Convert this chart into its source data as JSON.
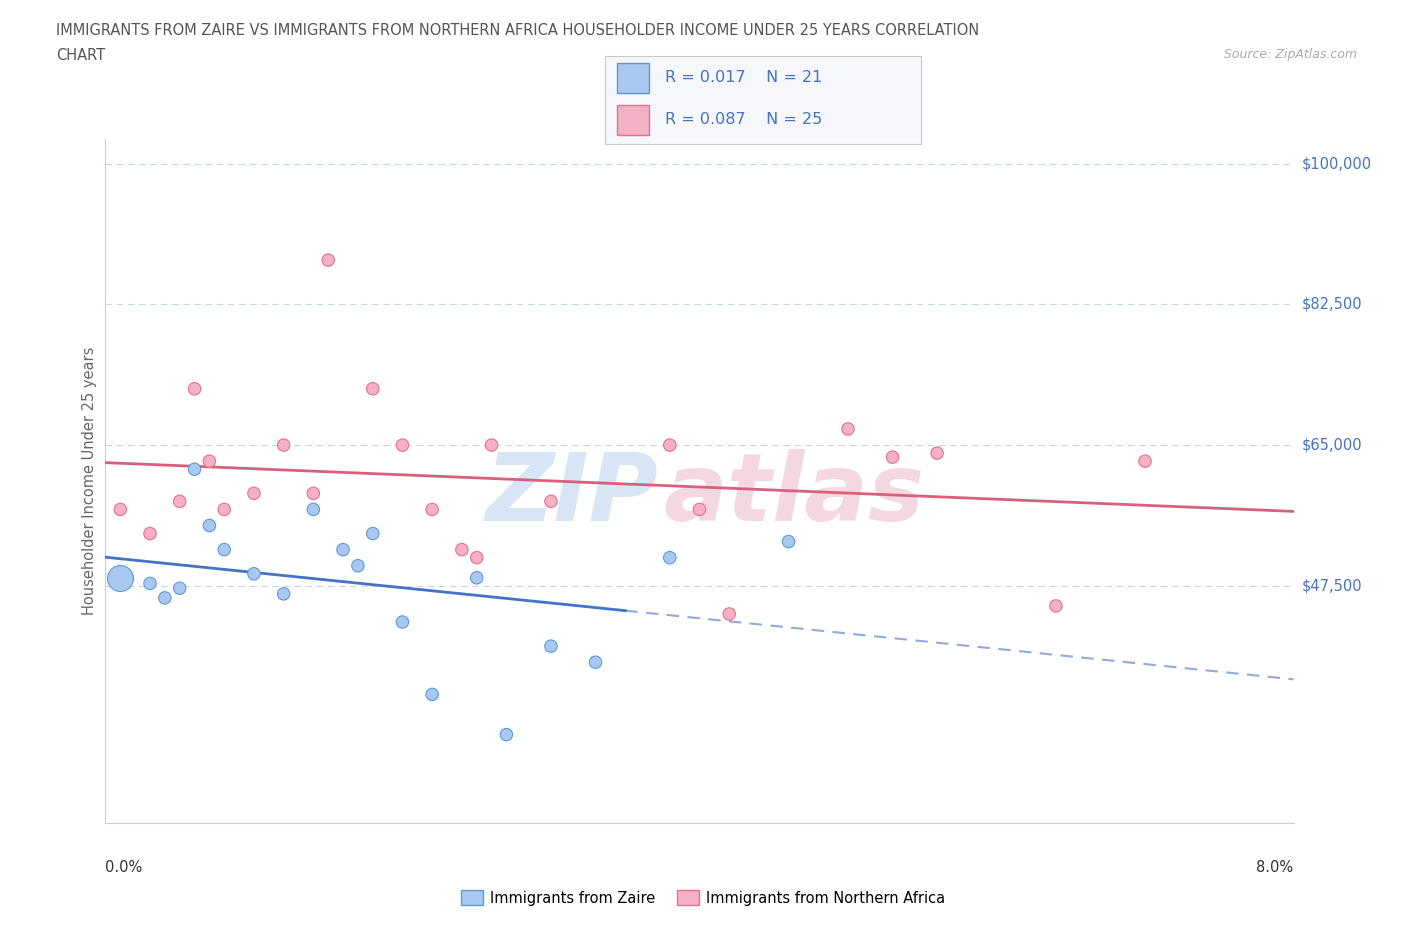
{
  "title_line1": "IMMIGRANTS FROM ZAIRE VS IMMIGRANTS FROM NORTHERN AFRICA HOUSEHOLDER INCOME UNDER 25 YEARS CORRELATION",
  "title_line2": "CHART",
  "source": "Source: ZipAtlas.com",
  "ylabel": "Householder Income Under 25 years",
  "xlim": [
    0.0,
    0.08
  ],
  "ylim": [
    18000,
    103000
  ],
  "yticks": [
    47500,
    65000,
    82500,
    100000
  ],
  "ytick_labels": [
    "$47,500",
    "$65,000",
    "$82,500",
    "$100,000"
  ],
  "watermark_zip": "ZIP",
  "watermark_atlas": "atlas",
  "zaire_fill": "#a8c8f0",
  "zaire_edge": "#5b9bd5",
  "na_fill": "#f4b0c4",
  "na_edge": "#e8708a",
  "zaire_R": "0.017",
  "zaire_N": "21",
  "na_R": "0.087",
  "na_N": "25",
  "zaire_line_color": "#4472c4",
  "na_line_color": "#d95f7a",
  "bg_color": "#ffffff",
  "grid_color": "#c8d4e8",
  "label_color": "#4472c4",
  "title_color": "#555555",
  "source_color": "#aaaaaa",
  "legend_zaire": "Immigrants from Zaire",
  "legend_na": "Immigrants from Northern Africa",
  "zaire_x": [
    0.001,
    0.003,
    0.004,
    0.005,
    0.006,
    0.007,
    0.008,
    0.01,
    0.012,
    0.014,
    0.016,
    0.017,
    0.018,
    0.02,
    0.022,
    0.025,
    0.027,
    0.03,
    0.033,
    0.038,
    0.046
  ],
  "zaire_y": [
    48500,
    47800,
    46000,
    47200,
    62000,
    55000,
    52000,
    49000,
    46500,
    57000,
    52000,
    50000,
    54000,
    43000,
    34000,
    48500,
    29000,
    40000,
    38000,
    51000,
    53000
  ],
  "zaire_size": [
    80,
    80,
    80,
    80,
    80,
    80,
    80,
    80,
    80,
    80,
    80,
    80,
    80,
    80,
    80,
    80,
    80,
    80,
    80,
    80,
    80
  ],
  "na_x": [
    0.001,
    0.003,
    0.005,
    0.006,
    0.007,
    0.008,
    0.01,
    0.012,
    0.014,
    0.015,
    0.018,
    0.02,
    0.022,
    0.024,
    0.025,
    0.026,
    0.03,
    0.038,
    0.04,
    0.042,
    0.05,
    0.053,
    0.056,
    0.064,
    0.07
  ],
  "na_y": [
    57000,
    54000,
    58000,
    72000,
    63000,
    57000,
    59000,
    65000,
    59000,
    88000,
    72000,
    65000,
    57000,
    52000,
    51000,
    65000,
    58000,
    65000,
    57000,
    44000,
    67000,
    63500,
    64000,
    45000,
    63000
  ],
  "na_size": [
    80,
    80,
    80,
    80,
    80,
    80,
    80,
    80,
    80,
    80,
    80,
    80,
    80,
    80,
    80,
    80,
    80,
    80,
    80,
    80,
    80,
    80,
    80,
    80,
    80
  ],
  "zaire_large_x": [
    0.001
  ],
  "zaire_large_y": [
    48500
  ],
  "zaire_large_size": [
    350
  ]
}
